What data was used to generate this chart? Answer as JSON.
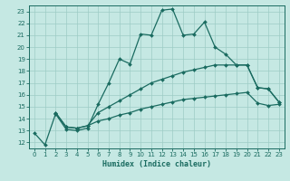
{
  "title": "",
  "xlabel": "Humidex (Indice chaleur)",
  "bg_color": "#c5e8e3",
  "grid_color": "#9dccc5",
  "line_color": "#1a6b60",
  "xlim": [
    -0.5,
    23.5
  ],
  "ylim": [
    11.5,
    23.5
  ],
  "xticks": [
    0,
    1,
    2,
    3,
    4,
    5,
    6,
    7,
    8,
    9,
    10,
    11,
    12,
    13,
    14,
    15,
    16,
    17,
    18,
    19,
    20,
    21,
    22,
    23
  ],
  "yticks": [
    12,
    13,
    14,
    15,
    16,
    17,
    18,
    19,
    20,
    21,
    22,
    23
  ],
  "line1_x": [
    0,
    1,
    2,
    3,
    4,
    5,
    6,
    7,
    8,
    9,
    10,
    11,
    12,
    13,
    14,
    15,
    16,
    17,
    18,
    19,
    20,
    21,
    22,
    23
  ],
  "line1_y": [
    12.8,
    11.8,
    14.4,
    13.1,
    13.0,
    13.2,
    15.2,
    17.0,
    19.0,
    18.6,
    21.1,
    21.0,
    23.1,
    23.2,
    21.0,
    21.1,
    22.1,
    20.0,
    19.4,
    18.5,
    18.5,
    16.6,
    16.5,
    15.4
  ],
  "line2_x": [
    2,
    3,
    4,
    5,
    6,
    7,
    8,
    9,
    10,
    11,
    12,
    13,
    14,
    15,
    16,
    17,
    18,
    19,
    20,
    21,
    22,
    23
  ],
  "line2_y": [
    14.5,
    13.3,
    13.2,
    13.4,
    14.5,
    15.0,
    15.5,
    16.0,
    16.5,
    17.0,
    17.3,
    17.6,
    17.9,
    18.1,
    18.3,
    18.5,
    18.5,
    18.5,
    18.5,
    16.6,
    16.5,
    15.4
  ],
  "line3_x": [
    2,
    3,
    4,
    5,
    6,
    7,
    8,
    9,
    10,
    11,
    12,
    13,
    14,
    15,
    16,
    17,
    18,
    19,
    20,
    21,
    22,
    23
  ],
  "line3_y": [
    14.5,
    13.3,
    13.2,
    13.4,
    13.8,
    14.0,
    14.3,
    14.5,
    14.8,
    15.0,
    15.2,
    15.4,
    15.6,
    15.7,
    15.8,
    15.9,
    16.0,
    16.1,
    16.2,
    15.3,
    15.1,
    15.2
  ]
}
